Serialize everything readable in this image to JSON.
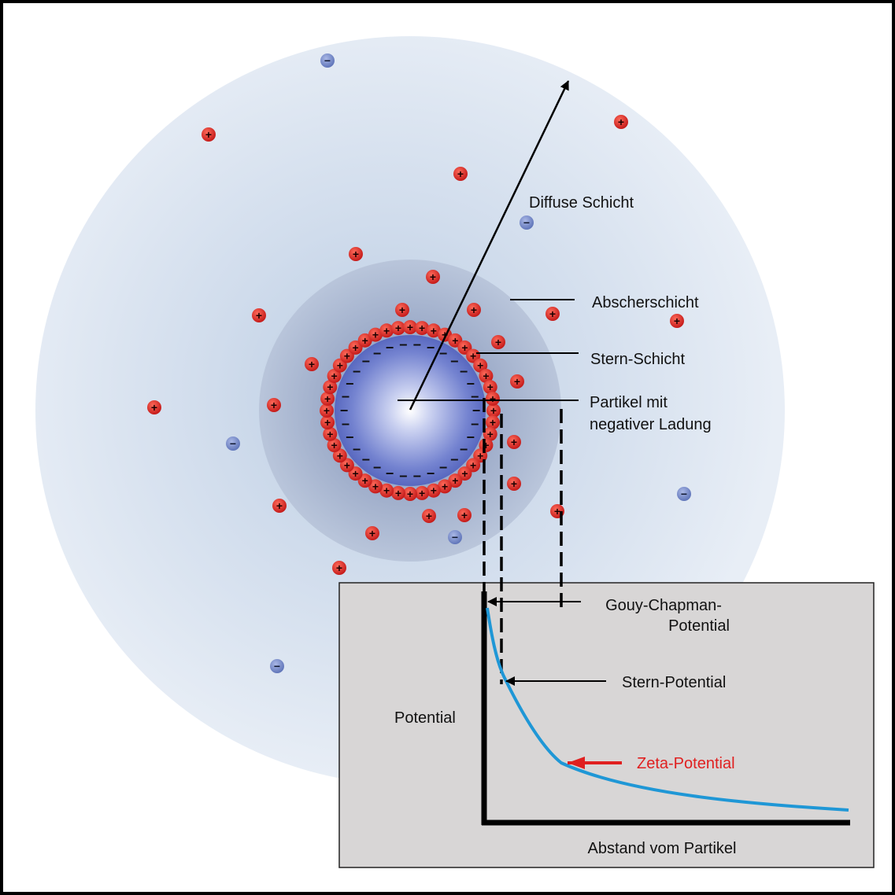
{
  "labels": {
    "diffuse_layer": "Diffuse Schicht",
    "shear_layer": "Abscherschicht",
    "stern_layer": "Stern-Schicht",
    "particle_line1": "Partikel mit",
    "particle_line2": "negativer Ladung",
    "gouy_line1": "Gouy-Chapman-",
    "gouy_line2": "Potential",
    "stern_potential": "Stern-Potential",
    "zeta_potential": "Zeta-Potential",
    "y_axis": "Potential",
    "x_axis": "Abstand vom Partikel"
  },
  "ion_symbols": {
    "cation": "+",
    "anion": "−",
    "surface_charge": "−"
  },
  "colors": {
    "cation": "#d42020",
    "anion": "#6f86c4",
    "potential_curve": "#1f97d6",
    "zeta_highlight": "#e02020",
    "graph_panel": "#d8d6d6",
    "diffuse_cloud": "#dde7f1",
    "stern_halo": "#a4b3cc",
    "particle_core": "#5f6fc6"
  }
}
